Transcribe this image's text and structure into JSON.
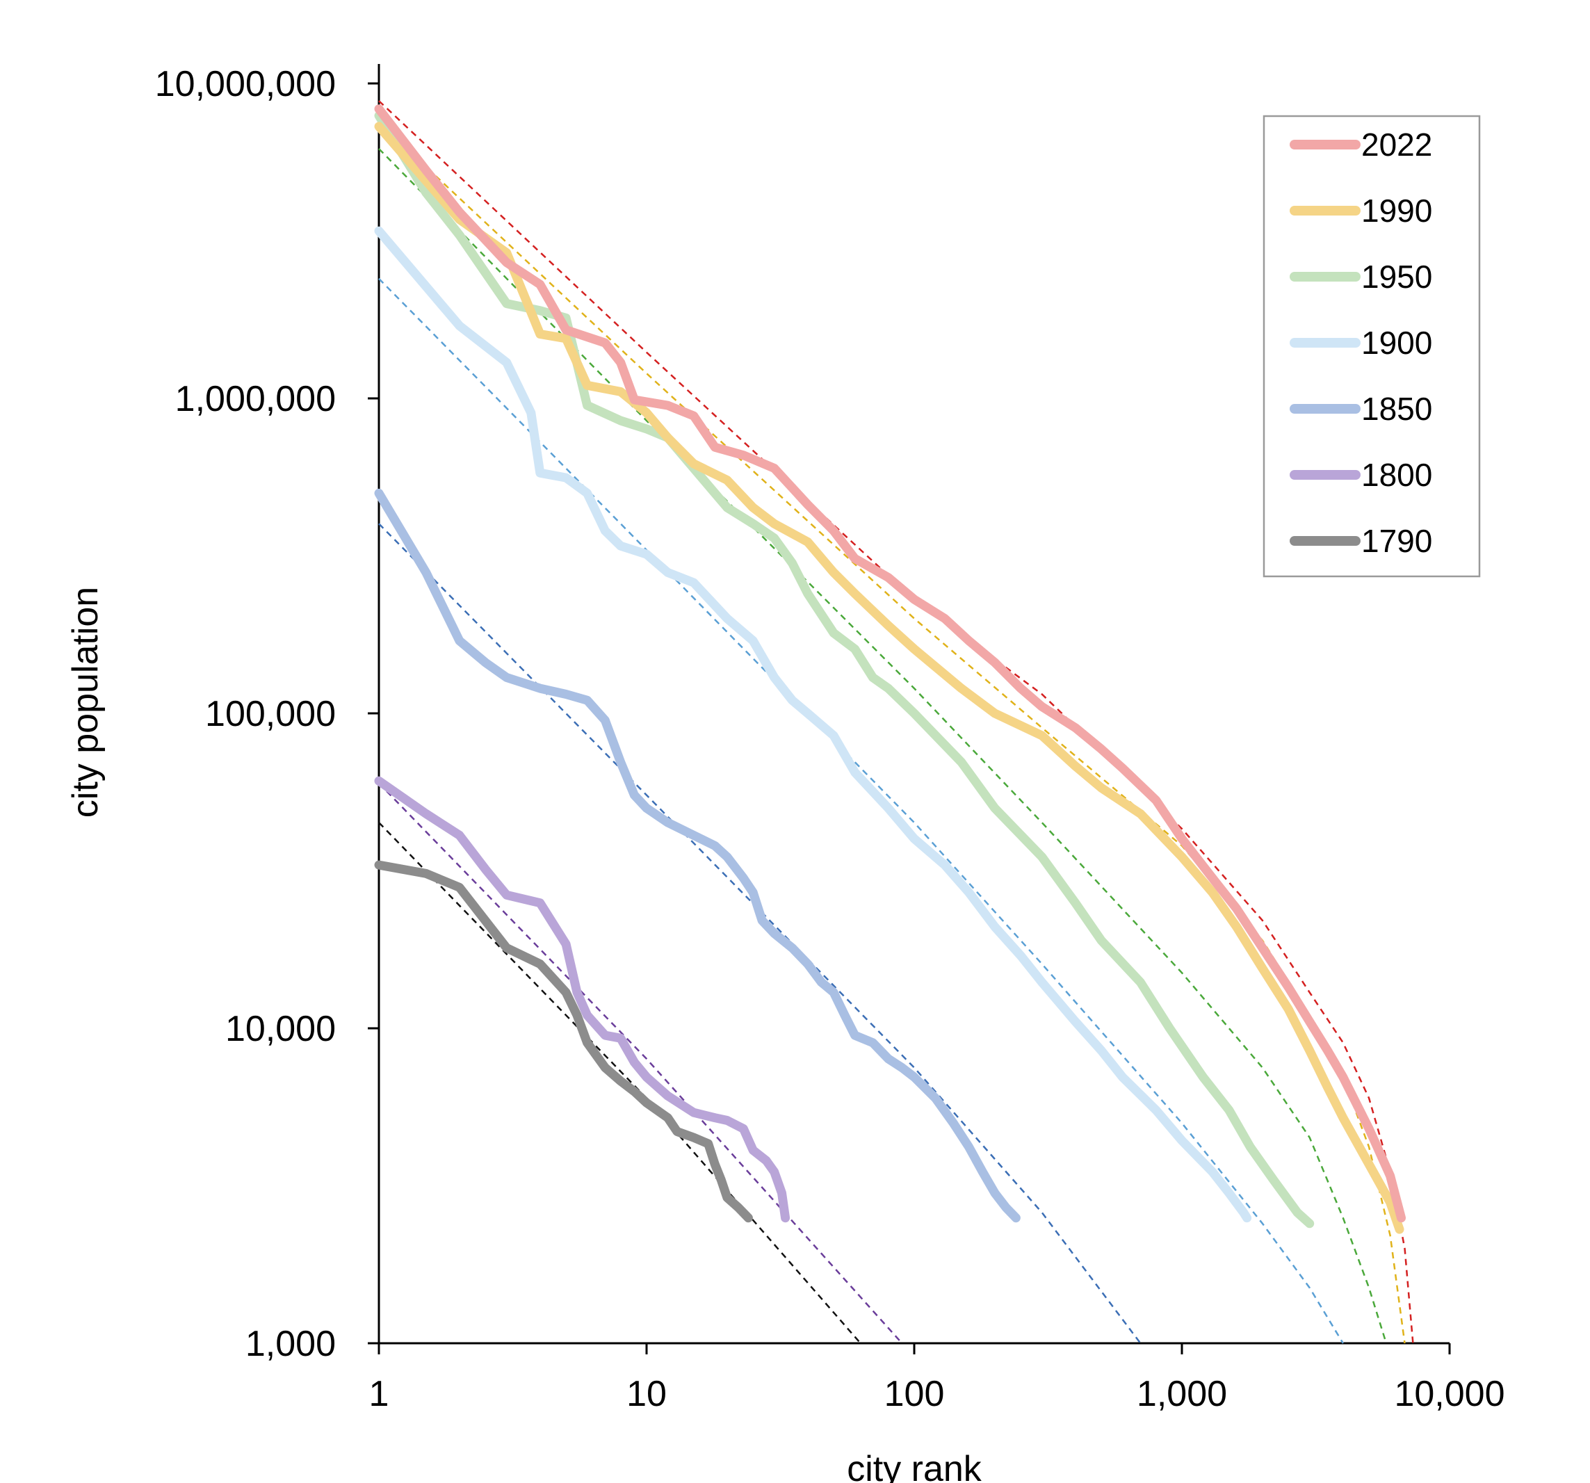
{
  "chart_data": {
    "type": "line",
    "xlabel": "city rank",
    "ylabel": "city population",
    "xscale": "log",
    "yscale": "log",
    "xlim": [
      1,
      10000
    ],
    "ylim": [
      1000,
      10000000
    ],
    "xticks": [
      {
        "value": 1,
        "label": "1"
      },
      {
        "value": 10,
        "label": "10"
      },
      {
        "value": 100,
        "label": "100"
      },
      {
        "value": 1000,
        "label": "1,000"
      },
      {
        "value": 10000,
        "label": "10,000"
      }
    ],
    "yticks": [
      {
        "value": 1000,
        "label": "1,000"
      },
      {
        "value": 10000,
        "label": "10,000"
      },
      {
        "value": 100000,
        "label": "100,000"
      },
      {
        "value": 1000000,
        "label": "1,000,000"
      },
      {
        "value": 10000000,
        "label": "10,000,000"
      }
    ],
    "grid": false,
    "legend_position": "top-right",
    "series": [
      {
        "name": "2022",
        "color": "#f2a7a7",
        "fit_color": "#d42020",
        "points": [
          [
            1,
            8300000
          ],
          [
            1.5,
            5300000
          ],
          [
            2,
            3900000
          ],
          [
            3,
            2700000
          ],
          [
            4,
            2300000
          ],
          [
            5,
            1650000
          ],
          [
            7,
            1500000
          ],
          [
            8,
            1300000
          ],
          [
            9,
            990000
          ],
          [
            12,
            950000
          ],
          [
            15,
            880000
          ],
          [
            18,
            700000
          ],
          [
            23,
            660000
          ],
          [
            30,
            600000
          ],
          [
            40,
            460000
          ],
          [
            50,
            380000
          ],
          [
            60,
            310000
          ],
          [
            80,
            270000
          ],
          [
            100,
            230000
          ],
          [
            130,
            200000
          ],
          [
            160,
            170000
          ],
          [
            200,
            145000
          ],
          [
            250,
            120000
          ],
          [
            300,
            105000
          ],
          [
            400,
            90000
          ],
          [
            500,
            77000
          ],
          [
            600,
            67000
          ],
          [
            800,
            53000
          ],
          [
            1000,
            40000
          ],
          [
            1300,
            30000
          ],
          [
            1600,
            24000
          ],
          [
            2000,
            18000
          ],
          [
            2500,
            13500
          ],
          [
            3000,
            10500
          ],
          [
            3500,
            8500
          ],
          [
            4000,
            7000
          ],
          [
            5000,
            4800
          ],
          [
            6000,
            3400
          ],
          [
            6600,
            2500
          ]
        ],
        "fit": [
          [
            1,
            8800000
          ],
          [
            10,
            1400000
          ],
          [
            100,
            230000
          ],
          [
            300,
            115000
          ],
          [
            1000,
            43000
          ],
          [
            2000,
            22000
          ],
          [
            3000,
            13000
          ],
          [
            4000,
            9000
          ],
          [
            5000,
            6000
          ],
          [
            6000,
            3500
          ],
          [
            6800,
            2000
          ],
          [
            7300,
            1000
          ]
        ]
      },
      {
        "name": "1990",
        "color": "#f5d486",
        "fit_color": "#e0b21a",
        "points": [
          [
            1,
            7300000
          ],
          [
            2,
            3700000
          ],
          [
            3,
            2900000
          ],
          [
            4,
            1600000
          ],
          [
            5,
            1550000
          ],
          [
            6,
            1100000
          ],
          [
            8,
            1050000
          ],
          [
            10,
            900000
          ],
          [
            12,
            750000
          ],
          [
            15,
            620000
          ],
          [
            20,
            550000
          ],
          [
            25,
            450000
          ],
          [
            30,
            400000
          ],
          [
            40,
            350000
          ],
          [
            50,
            280000
          ],
          [
            60,
            240000
          ],
          [
            80,
            190000
          ],
          [
            100,
            160000
          ],
          [
            150,
            120000
          ],
          [
            200,
            100000
          ],
          [
            300,
            85000
          ],
          [
            400,
            68000
          ],
          [
            500,
            58000
          ],
          [
            700,
            48000
          ],
          [
            1000,
            35000
          ],
          [
            1300,
            27000
          ],
          [
            1600,
            21000
          ],
          [
            2000,
            15500
          ],
          [
            2500,
            11500
          ],
          [
            3000,
            8500
          ],
          [
            3500,
            6500
          ],
          [
            4000,
            5200
          ],
          [
            5000,
            3700
          ],
          [
            6000,
            2800
          ],
          [
            6500,
            2300
          ]
        ],
        "fit": [
          [
            1,
            7500000
          ],
          [
            10,
            1200000
          ],
          [
            100,
            200000
          ],
          [
            300,
            90000
          ],
          [
            1000,
            38000
          ],
          [
            2000,
            19000
          ],
          [
            3000,
            11000
          ],
          [
            4000,
            7000
          ],
          [
            5000,
            4200
          ],
          [
            6000,
            2200
          ],
          [
            6800,
            1000
          ]
        ]
      },
      {
        "name": "1950",
        "color": "#c4e2bd",
        "fit_color": "#4aa83a",
        "points": [
          [
            1,
            7900000
          ],
          [
            1.5,
            4500000
          ],
          [
            2,
            3300000
          ],
          [
            3,
            2000000
          ],
          [
            4,
            1900000
          ],
          [
            5,
            1800000
          ],
          [
            6,
            950000
          ],
          [
            8,
            850000
          ],
          [
            10,
            800000
          ],
          [
            12,
            750000
          ],
          [
            15,
            600000
          ],
          [
            20,
            450000
          ],
          [
            25,
            400000
          ],
          [
            30,
            360000
          ],
          [
            35,
            300000
          ],
          [
            40,
            240000
          ],
          [
            50,
            180000
          ],
          [
            60,
            160000
          ],
          [
            70,
            130000
          ],
          [
            80,
            120000
          ],
          [
            100,
            100000
          ],
          [
            150,
            70000
          ],
          [
            200,
            50000
          ],
          [
            300,
            35000
          ],
          [
            400,
            25000
          ],
          [
            500,
            19000
          ],
          [
            700,
            14000
          ],
          [
            900,
            10000
          ],
          [
            1200,
            7000
          ],
          [
            1500,
            5500
          ],
          [
            1800,
            4200
          ],
          [
            2200,
            3300
          ],
          [
            2700,
            2600
          ],
          [
            3000,
            2400
          ]
        ],
        "fit": [
          [
            1,
            6200000
          ],
          [
            10,
            850000
          ],
          [
            100,
            120000
          ],
          [
            300,
            45000
          ],
          [
            1000,
            15000
          ],
          [
            2000,
            7500
          ],
          [
            3000,
            4500
          ],
          [
            4000,
            2500
          ],
          [
            5000,
            1500
          ],
          [
            5800,
            1000
          ]
        ]
      },
      {
        "name": "1900",
        "color": "#cfe5f6",
        "fit_color": "#5a9fd4",
        "points": [
          [
            1,
            3400000
          ],
          [
            2,
            1700000
          ],
          [
            3,
            1300000
          ],
          [
            3.7,
            900000
          ],
          [
            4,
            580000
          ],
          [
            5,
            560000
          ],
          [
            6,
            500000
          ],
          [
            7,
            380000
          ],
          [
            8,
            340000
          ],
          [
            10,
            320000
          ],
          [
            12,
            280000
          ],
          [
            15,
            260000
          ],
          [
            20,
            200000
          ],
          [
            25,
            170000
          ],
          [
            30,
            130000
          ],
          [
            35,
            110000
          ],
          [
            40,
            100000
          ],
          [
            50,
            85000
          ],
          [
            60,
            65000
          ],
          [
            80,
            50000
          ],
          [
            100,
            40000
          ],
          [
            130,
            33000
          ],
          [
            160,
            27000
          ],
          [
            200,
            21000
          ],
          [
            250,
            17000
          ],
          [
            300,
            14000
          ],
          [
            400,
            10500
          ],
          [
            500,
            8500
          ],
          [
            600,
            7000
          ],
          [
            800,
            5500
          ],
          [
            1000,
            4400
          ],
          [
            1300,
            3500
          ],
          [
            1500,
            3000
          ],
          [
            1700,
            2600
          ],
          [
            1750,
            2500
          ]
        ],
        "fit": [
          [
            1,
            2400000
          ],
          [
            10,
            330000
          ],
          [
            100,
            45000
          ],
          [
            300,
            16000
          ],
          [
            1000,
            5000
          ],
          [
            2000,
            2400
          ],
          [
            3000,
            1500
          ],
          [
            4000,
            1000
          ]
        ]
      },
      {
        "name": "1850",
        "color": "#a9bfe3",
        "fit_color": "#3b6eb5",
        "points": [
          [
            1,
            500000
          ],
          [
            1.5,
            280000
          ],
          [
            2,
            170000
          ],
          [
            2.5,
            145000
          ],
          [
            3,
            130000
          ],
          [
            4,
            120000
          ],
          [
            5,
            115000
          ],
          [
            6,
            110000
          ],
          [
            7,
            95000
          ],
          [
            8,
            70000
          ],
          [
            9,
            55000
          ],
          [
            10,
            50000
          ],
          [
            12,
            45000
          ],
          [
            15,
            41000
          ],
          [
            18,
            38000
          ],
          [
            20,
            35000
          ],
          [
            23,
            30000
          ],
          [
            25,
            27000
          ],
          [
            27,
            22000
          ],
          [
            30,
            20000
          ],
          [
            35,
            18000
          ],
          [
            40,
            16000
          ],
          [
            45,
            14000
          ],
          [
            50,
            13000
          ],
          [
            55,
            11000
          ],
          [
            60,
            9500
          ],
          [
            70,
            9000
          ],
          [
            80,
            8000
          ],
          [
            90,
            7500
          ],
          [
            100,
            7000
          ],
          [
            120,
            6000
          ],
          [
            140,
            5000
          ],
          [
            160,
            4200
          ],
          [
            180,
            3500
          ],
          [
            200,
            3000
          ],
          [
            220,
            2700
          ],
          [
            240,
            2500
          ]
        ],
        "fit": [
          [
            1,
            400000
          ],
          [
            10,
            55000
          ],
          [
            100,
            7500
          ],
          [
            300,
            2600
          ],
          [
            700,
            1000
          ]
        ]
      },
      {
        "name": "1800",
        "color": "#b9a5d8",
        "fit_color": "#6a3d9a",
        "points": [
          [
            1,
            61000
          ],
          [
            1.5,
            48000
          ],
          [
            2,
            41000
          ],
          [
            2.5,
            32000
          ],
          [
            3,
            26500
          ],
          [
            4,
            25000
          ],
          [
            5,
            18500
          ],
          [
            5.5,
            13000
          ],
          [
            6,
            11000
          ],
          [
            7,
            9500
          ],
          [
            8,
            9300
          ],
          [
            9,
            7800
          ],
          [
            10,
            7000
          ],
          [
            12,
            6100
          ],
          [
            15,
            5400
          ],
          [
            18,
            5200
          ],
          [
            20,
            5100
          ],
          [
            23,
            4800
          ],
          [
            25,
            4100
          ],
          [
            28,
            3800
          ],
          [
            30,
            3500
          ],
          [
            32,
            3000
          ],
          [
            33,
            2500
          ]
        ],
        "fit": [
          [
            1,
            60000
          ],
          [
            10,
            8000
          ],
          [
            90,
            1000
          ]
        ]
      },
      {
        "name": "1790",
        "color": "#8c8c8c",
        "fit_color": "#111111",
        "points": [
          [
            1,
            33000
          ],
          [
            1.5,
            31000
          ],
          [
            2,
            28000
          ],
          [
            3,
            18000
          ],
          [
            4,
            16000
          ],
          [
            5,
            13000
          ],
          [
            5.5,
            11000
          ],
          [
            6,
            9000
          ],
          [
            7,
            7500
          ],
          [
            8,
            6800
          ],
          [
            9,
            6300
          ],
          [
            10,
            5800
          ],
          [
            12,
            5200
          ],
          [
            13,
            4700
          ],
          [
            15,
            4500
          ],
          [
            17,
            4300
          ],
          [
            18,
            3700
          ],
          [
            19,
            3300
          ],
          [
            20,
            2900
          ],
          [
            22,
            2700
          ],
          [
            24,
            2500
          ]
        ],
        "fit": [
          [
            1,
            45000
          ],
          [
            10,
            6000
          ],
          [
            63,
            1000
          ]
        ]
      }
    ]
  }
}
